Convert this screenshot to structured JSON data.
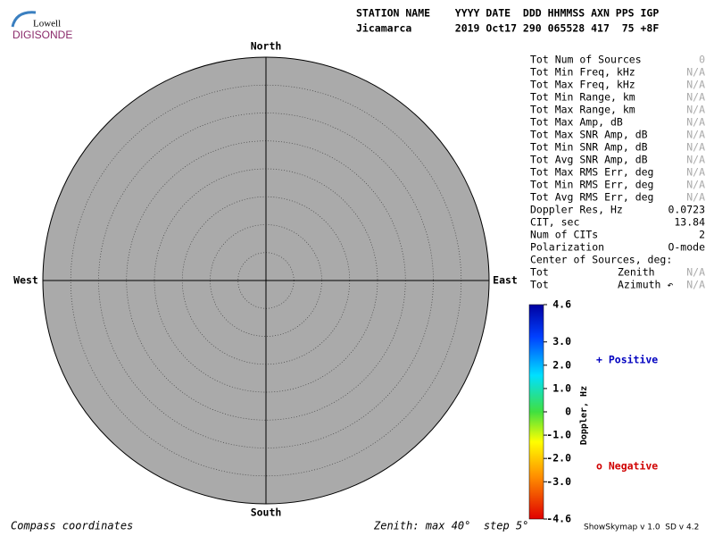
{
  "logo": {
    "top": "Lowell",
    "bottom": "DIGISONDE"
  },
  "header": {
    "columns": "STATION NAME    YYYY DATE  DDD HHMMSS AXN PPS IGP",
    "values": "Jicamarca       2019 Oct17 290 065528 417  75 +8F"
  },
  "compass": {
    "north": "North",
    "south": "South",
    "west": "West",
    "east": "East"
  },
  "stats": [
    {
      "label": "Tot Num of Sources",
      "value": "0"
    },
    {
      "label": "Tot Min Freq, kHz",
      "value": "N/A"
    },
    {
      "label": "Tot Max Freq, kHz",
      "value": "N/A"
    },
    {
      "label": "Tot Min Range, km",
      "value": "N/A"
    },
    {
      "label": "Tot Max Range, km",
      "value": "N/A"
    },
    {
      "label": "Tot Max Amp, dB",
      "value": "N/A"
    },
    {
      "label": "Tot Max SNR Amp, dB",
      "value": "N/A"
    },
    {
      "label": "Tot Min SNR Amp, dB",
      "value": "N/A"
    },
    {
      "label": "Tot Avg SNR Amp, dB",
      "value": "N/A"
    },
    {
      "label": "Tot Max RMS Err, deg",
      "value": "N/A"
    },
    {
      "label": "Tot Min RMS Err, deg",
      "value": "N/A"
    },
    {
      "label": "Tot Avg RMS Err, deg",
      "value": "N/A"
    },
    {
      "label": "Doppler Res, Hz",
      "value": "0.0723"
    },
    {
      "label": "CIT, sec",
      "value": "13.84"
    },
    {
      "label": "Num of CITs",
      "value": "2"
    },
    {
      "label": "Polarization",
      "value": "O-mode"
    },
    {
      "label": "Center of Sources, deg:"
    },
    {
      "label": "Tot",
      "sub": "Zenith",
      "value": "N/A"
    },
    {
      "label": "Tot",
      "sub": "Azimuth ↶",
      "value": "N/A"
    }
  ],
  "colorbar": {
    "title": "Doppler, Hz",
    "lim": [
      -4.6,
      4.6
    ],
    "ticks": [
      4.6,
      {
        "value": 3,
        "label": "3.0"
      },
      {
        "value": 2,
        "label": "2.0"
      },
      {
        "value": 1,
        "label": "1.0"
      },
      0,
      {
        "value": -1,
        "label": "-1.0"
      },
      {
        "value": -2,
        "label": "-2.0"
      },
      {
        "value": -3,
        "label": "-3.0"
      },
      -4.6
    ]
  },
  "legend": {
    "positive": "+ Positive",
    "negative": "o Negative"
  },
  "footer": {
    "left": "Compass coordinates",
    "middle": "Zenith: max 40°  step 5°",
    "right": "ShowSkymap v 1.0  SD v 4.2"
  }
}
